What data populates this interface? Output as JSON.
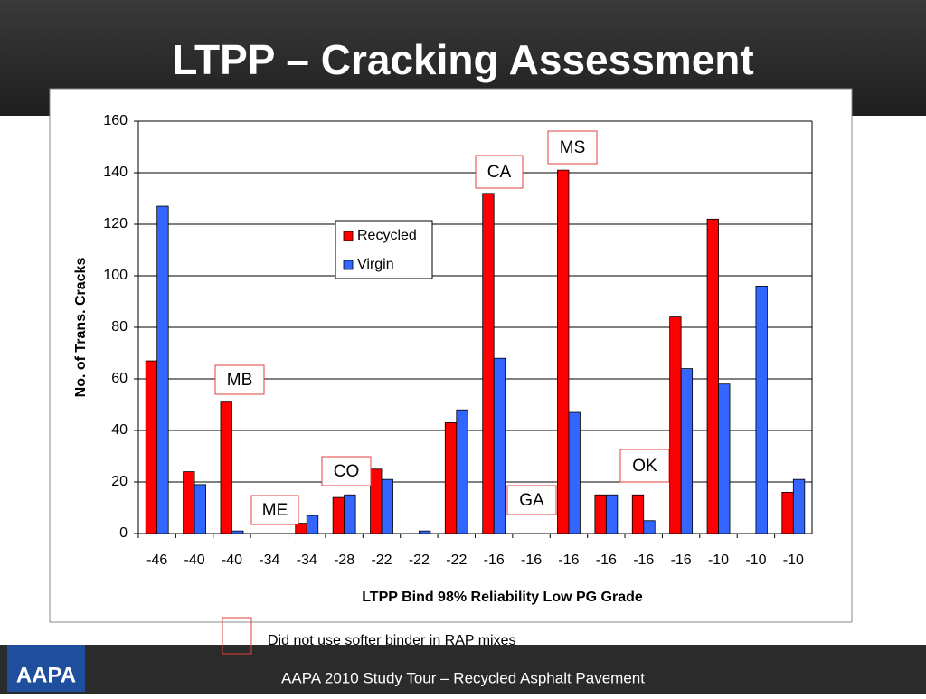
{
  "slide_title": "LTPP – Cracking Assessment",
  "chart_data": {
    "type": "bar",
    "categories": [
      "-46",
      "-40",
      "-40",
      "-34",
      "-34",
      "-28",
      "-22",
      "-22",
      "-22",
      "-16",
      "-16",
      "-16",
      "-16",
      "-16",
      "-16",
      "-10",
      "-10",
      "-10"
    ],
    "series": [
      {
        "name": "Recycled",
        "color": "#ff0000",
        "values": [
          67,
          24,
          51,
          0,
          4,
          14,
          25,
          0,
          43,
          132,
          0,
          141,
          15,
          15,
          84,
          122,
          0,
          16
        ]
      },
      {
        "name": "Virgin",
        "color": "#3366ff",
        "values": [
          127,
          19,
          1,
          0,
          7,
          15,
          21,
          1,
          48,
          68,
          0,
          47,
          15,
          5,
          64,
          58,
          96,
          21
        ]
      }
    ],
    "ylim": [
      0,
      160
    ],
    "yticks": [
      0,
      20,
      40,
      60,
      80,
      100,
      120,
      140,
      160
    ],
    "grid": true,
    "y_label": "No. of Trans. Cracks",
    "x_label": "LTPP Bind 98% Reliability Low PG Grade",
    "annotations": [
      "MB",
      "ME",
      "CO",
      "GA",
      "CA",
      "MS",
      "OK"
    ]
  },
  "note": "Did not use softer binder in RAP mixes",
  "logo": "AAPA",
  "footer": "AAPA 2010 Study Tour – Recycled Asphalt Pavement"
}
